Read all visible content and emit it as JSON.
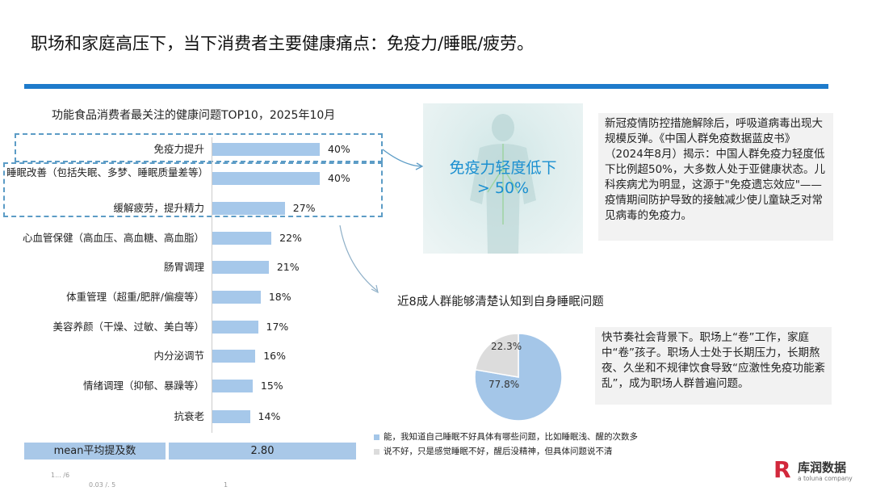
{
  "title": "职场和家庭高压下，当下消费者主要健康痛点：免疫力/睡眠/疲劳。",
  "colors": {
    "accent": "#1e7bcb",
    "bar": "#a6c8ea",
    "pie_blue": "#a4c6e8",
    "pie_grey": "#dcdcdc",
    "logo_red": "#d2283c"
  },
  "chart_data": [
    {
      "type": "bar",
      "orientation": "horizontal",
      "title": "功能食品消费者最关注的健康问题TOP10，2025年10月",
      "categories": [
        "免疫力提升",
        "睡眠改善（包括失眠、多梦、睡眠质量差等）",
        "缓解疲劳，提升精力",
        "心血管保健（高血压、高血糖、高血脂）",
        "肠胃调理",
        "体重管理（超重/肥胖/偏瘦等）",
        "美容养颜（干燥、过敏、美白等）",
        "内分泌调节",
        "情绪调理（抑郁、暴躁等）",
        "抗衰老"
      ],
      "values": [
        40,
        40,
        27,
        22,
        21,
        18,
        17,
        16,
        15,
        14
      ],
      "value_labels": [
        "40%",
        "40%",
        "27%",
        "22%",
        "21%",
        "18%",
        "17%",
        "16%",
        "15%",
        "14%"
      ],
      "xlim": [
        0,
        60
      ],
      "mean_label": "mean平均提及数",
      "mean_value": "2.80"
    },
    {
      "type": "pie",
      "title": "近8成人群能够清楚认知到自身睡眠问题",
      "labels": [
        "能，我知道自己睡眠不好具体有哪些问题，比如睡眠浅、醒的次数多",
        "说不好，只是感觉睡眠不好，醒后没精神，但具体问题说不清"
      ],
      "values": [
        77.8,
        22.3
      ],
      "value_labels": [
        "77.8%",
        "22.3%"
      ],
      "legend": "bottom"
    }
  ],
  "image_panel": {
    "line1": "免疫力轻度低下",
    "line2": "> 50%"
  },
  "textbox1": "新冠疫情防控措施解除后，呼吸道病毒出现大规模反弹。《中国人群免疫数据蓝皮书》（2024年8月）揭示：中国人群免疫力轻度低下比例超50%，大多数人处于亚健康状态。儿科疾病尤为明显，这源于\"免疫遗忘效应\"—— 疫情期间防护导致的接触减少使儿童缺乏对常见病毒的免疫力。",
  "textbox2": "快节奏社会背景下。职场上“卷”工作，家庭中“卷”孩子。职场人士处于长期压力，长期熬夜、久坐和不规律饮食导致“应激性免疫功能紊乱”，成为职场人群普遍问题。",
  "footnotes": [
    "1... /6",
    "0.03 /.  5",
    "1"
  ],
  "logo": {
    "name": "库润数据",
    "tagline": "a toluna company",
    "mark": "R"
  }
}
